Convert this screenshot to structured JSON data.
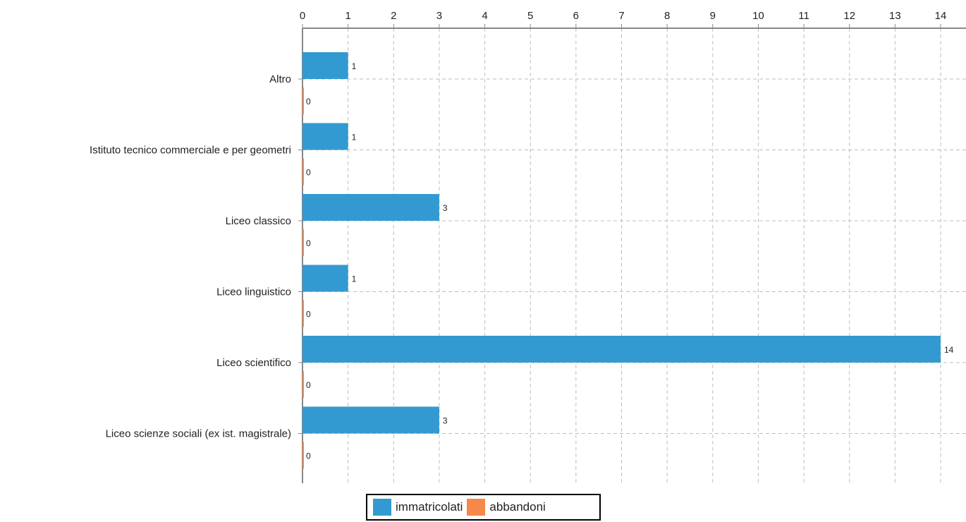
{
  "chart_data": {
    "type": "bar",
    "orientation": "horizontal",
    "categories": [
      "Altro",
      "Istituto tecnico commerciale e per geometri",
      "Liceo classico",
      "Liceo linguistico",
      "Liceo scientifico",
      "Liceo scienze sociali (ex ist. magistrale)"
    ],
    "series": [
      {
        "name": "immatricolati",
        "color": "#339ad1",
        "values": [
          1,
          1,
          3,
          1,
          14,
          3
        ]
      },
      {
        "name": "abbandoni",
        "color": "#f5884a",
        "values": [
          0,
          0,
          0,
          0,
          0,
          0
        ]
      }
    ],
    "xlim": [
      0,
      14
    ],
    "xticks": [
      "0",
      "1",
      "2",
      "3",
      "4",
      "5",
      "6",
      "7",
      "8",
      "9",
      "10",
      "11",
      "12",
      "13",
      "14"
    ],
    "axis_position": "top",
    "grid": true,
    "legend_position": "bottom-center",
    "title": "",
    "xlabel": "",
    "ylabel": ""
  }
}
